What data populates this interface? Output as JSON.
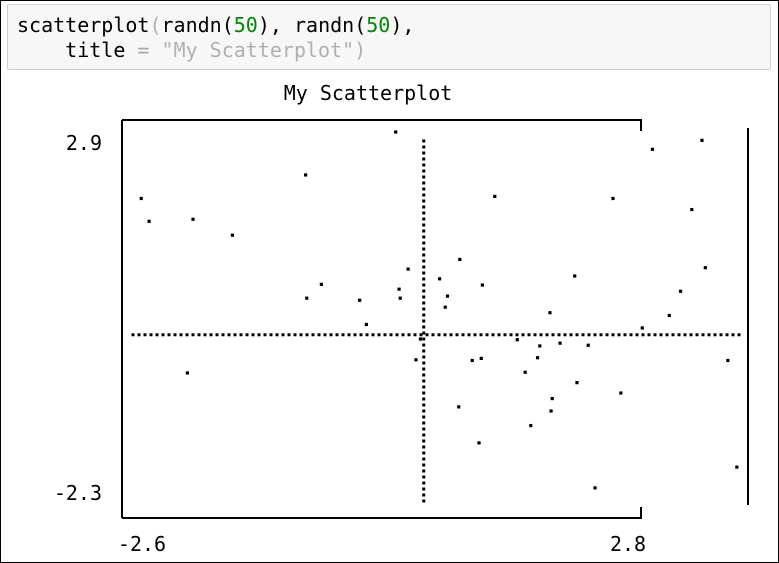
{
  "code": {
    "fn": "scatterplot",
    "open_paren": "(",
    "call_a_fn": "randn",
    "call_a_open": "(",
    "call_a_arg": "50",
    "call_a_close": ")",
    "sep": ", ",
    "call_b_fn": "randn",
    "call_b_open": "(",
    "call_b_arg": "50",
    "call_b_close": "),",
    "kw_indent": "    ",
    "kw": "title",
    "eq": " = ",
    "kw_value": "\"My Scatterplot\"",
    "close_paren": ")"
  },
  "colors": {
    "code_bg": "#f7f7f7",
    "code_border": "#cfcfcf",
    "number": "#008800",
    "muted": "#a8a8a8",
    "ink": "#000000"
  },
  "chart_data": {
    "type": "scatter",
    "title": "My Scatterplot",
    "xlim": [
      -2.6,
      2.8
    ],
    "ylim": [
      -2.3,
      2.9
    ],
    "x_tick_labels": [
      "-2.6",
      "2.8"
    ],
    "y_tick_labels": [
      "2.9",
      "-2.3"
    ],
    "axis_lines": {
      "x_zero": 0.0,
      "y_zero": 0.0
    },
    "points": [
      {
        "x": -2.51,
        "y": 1.97
      },
      {
        "x": -2.44,
        "y": 1.64
      },
      {
        "x": -2.05,
        "y": 1.67
      },
      {
        "x": -1.7,
        "y": 1.44
      },
      {
        "x": -1.05,
        "y": 2.31
      },
      {
        "x": -0.25,
        "y": 2.93
      },
      {
        "x": -1.04,
        "y": 0.53
      },
      {
        "x": -0.91,
        "y": 0.73
      },
      {
        "x": -0.57,
        "y": 0.5
      },
      {
        "x": -0.51,
        "y": 0.15
      },
      {
        "x": -0.21,
        "y": 0.53
      },
      {
        "x": -0.03,
        "y": -0.06
      },
      {
        "x": -0.07,
        "y": -0.36
      },
      {
        "x": 0.14,
        "y": 0.81
      },
      {
        "x": 0.19,
        "y": 0.4
      },
      {
        "x": 0.21,
        "y": 0.56
      },
      {
        "x": 0.31,
        "y": -1.04
      },
      {
        "x": 0.51,
        "y": -0.34
      },
      {
        "x": 0.52,
        "y": 0.72
      },
      {
        "x": 0.32,
        "y": 1.09
      },
      {
        "x": 0.43,
        "y": -0.37
      },
      {
        "x": 1.12,
        "y": 0.32
      },
      {
        "x": 1.13,
        "y": -1.1
      },
      {
        "x": 1.14,
        "y": -0.92
      },
      {
        "x": 1.34,
        "y": 0.85
      },
      {
        "x": 1.46,
        "y": -0.15
      },
      {
        "x": 1.36,
        "y": -0.69
      },
      {
        "x": 1.21,
        "y": -0.12
      },
      {
        "x": 1.68,
        "y": 1.97
      },
      {
        "x": 1.94,
        "y": 0.1
      },
      {
        "x": 2.03,
        "y": 2.68
      },
      {
        "x": 2.18,
        "y": 0.28
      },
      {
        "x": 2.28,
        "y": 0.63
      },
      {
        "x": 2.38,
        "y": 1.81
      },
      {
        "x": 2.47,
        "y": 2.81
      },
      {
        "x": 2.5,
        "y": 0.97
      },
      {
        "x": 2.7,
        "y": -0.37
      },
      {
        "x": 2.78,
        "y": -1.91
      },
      {
        "x": 1.52,
        "y": -2.21
      },
      {
        "x": 0.95,
        "y": -1.31
      },
      {
        "x": 0.49,
        "y": -1.56
      },
      {
        "x": 1.03,
        "y": -0.16
      },
      {
        "x": 1.01,
        "y": -0.33
      },
      {
        "x": 0.9,
        "y": -0.54
      },
      {
        "x": -0.14,
        "y": 0.95
      },
      {
        "x": -0.22,
        "y": 0.66
      },
      {
        "x": 1.75,
        "y": -0.84
      },
      {
        "x": 0.83,
        "y": -0.07
      },
      {
        "x": -2.1,
        "y": -0.55
      },
      {
        "x": 0.63,
        "y": 2.0
      }
    ],
    "grid": false,
    "legend": "none"
  }
}
